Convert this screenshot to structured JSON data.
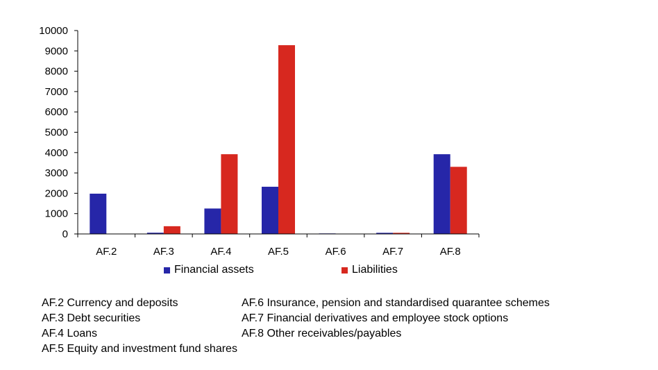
{
  "chart_data": {
    "type": "bar",
    "categories": [
      "AF.2",
      "AF.3",
      "AF.4",
      "AF.5",
      "AF.6",
      "AF.7",
      "AF.8"
    ],
    "series": [
      {
        "name": "Financial assets",
        "values": [
          1980,
          60,
          1250,
          2320,
          25,
          55,
          3920
        ],
        "color": "#2626a8"
      },
      {
        "name": "Liabilities",
        "values": [
          0,
          380,
          3920,
          9280,
          0,
          55,
          3300
        ],
        "color": "#d7281f"
      }
    ],
    "title": "",
    "xlabel": "",
    "ylabel": "",
    "ylim": [
      0,
      10000
    ],
    "yticks": [
      "0",
      "1000",
      "2000",
      "3000",
      "4000",
      "5000",
      "6000",
      "7000",
      "8000",
      "9000",
      "10000"
    ],
    "grid": false,
    "legend_position": "bottom"
  },
  "legend": {
    "assets": "Financial assets",
    "liabilities": "Liabilities"
  },
  "notes": {
    "af2": "AF.2 Currency and deposits",
    "af3": "AF.3 Debt securities",
    "af4": "AF.4 Loans",
    "af5": "AF.5 Equity and investment fund shares",
    "af6": "AF.6 Insurance, pension and standardised quarantee schemes",
    "af7": "AF.7 Financial derivatives and employee stock options",
    "af8": "AF.8 Other receivables/payables"
  }
}
